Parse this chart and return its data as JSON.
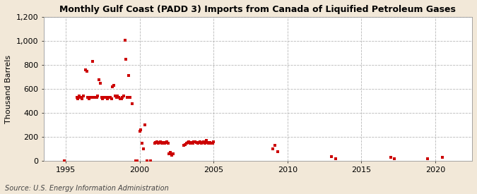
{
  "title": "Monthly Gulf Coast (PADD 3) Imports from Canada of Liquified Petroleum Gases",
  "ylabel": "Thousand Barrels",
  "source": "Source: U.S. Energy Information Administration",
  "background_color": "#f2e8d8",
  "plot_bg_color": "#ffffff",
  "marker_color": "#cc0000",
  "marker_size": 9,
  "ylim": [
    0,
    1200
  ],
  "yticks": [
    0,
    200,
    400,
    600,
    800,
    1000,
    1200
  ],
  "xlim_start": 1993.5,
  "xlim_end": 2022.5,
  "xticks": [
    1995,
    2000,
    2005,
    2010,
    2015,
    2020
  ],
  "data_points": [
    [
      1994.92,
      0
    ],
    [
      1995.75,
      530
    ],
    [
      1995.83,
      520
    ],
    [
      1995.92,
      540
    ],
    [
      1996.0,
      530
    ],
    [
      1996.08,
      520
    ],
    [
      1996.17,
      540
    ],
    [
      1996.33,
      760
    ],
    [
      1996.42,
      750
    ],
    [
      1996.5,
      530
    ],
    [
      1996.58,
      520
    ],
    [
      1996.67,
      530
    ],
    [
      1996.75,
      530
    ],
    [
      1996.83,
      830
    ],
    [
      1996.92,
      530
    ],
    [
      1997.0,
      530
    ],
    [
      1997.08,
      530
    ],
    [
      1997.17,
      540
    ],
    [
      1997.25,
      680
    ],
    [
      1997.33,
      650
    ],
    [
      1997.42,
      530
    ],
    [
      1997.5,
      520
    ],
    [
      1997.58,
      530
    ],
    [
      1997.67,
      530
    ],
    [
      1997.75,
      530
    ],
    [
      1997.83,
      520
    ],
    [
      1997.92,
      530
    ],
    [
      1998.0,
      530
    ],
    [
      1998.08,
      520
    ],
    [
      1998.17,
      620
    ],
    [
      1998.25,
      630
    ],
    [
      1998.33,
      540
    ],
    [
      1998.42,
      530
    ],
    [
      1998.5,
      540
    ],
    [
      1998.58,
      530
    ],
    [
      1998.67,
      520
    ],
    [
      1998.75,
      520
    ],
    [
      1998.83,
      530
    ],
    [
      1998.92,
      540
    ],
    [
      1999.0,
      1005
    ],
    [
      1999.08,
      850
    ],
    [
      1999.17,
      530
    ],
    [
      1999.25,
      710
    ],
    [
      1999.33,
      530
    ],
    [
      1999.5,
      480
    ],
    [
      1999.75,
      0
    ],
    [
      1999.83,
      0
    ],
    [
      2000.0,
      250
    ],
    [
      2000.08,
      260
    ],
    [
      2000.17,
      150
    ],
    [
      2000.25,
      100
    ],
    [
      2000.33,
      300
    ],
    [
      2000.5,
      0
    ],
    [
      2000.75,
      0
    ],
    [
      2001.0,
      150
    ],
    [
      2001.08,
      155
    ],
    [
      2001.17,
      160
    ],
    [
      2001.25,
      150
    ],
    [
      2001.33,
      155
    ],
    [
      2001.42,
      160
    ],
    [
      2001.5,
      150
    ],
    [
      2001.58,
      155
    ],
    [
      2001.67,
      150
    ],
    [
      2001.75,
      155
    ],
    [
      2001.83,
      160
    ],
    [
      2001.92,
      150
    ],
    [
      2002.0,
      60
    ],
    [
      2002.08,
      70
    ],
    [
      2002.17,
      50
    ],
    [
      2002.25,
      60
    ],
    [
      2003.0,
      130
    ],
    [
      2003.08,
      140
    ],
    [
      2003.17,
      150
    ],
    [
      2003.25,
      155
    ],
    [
      2003.33,
      160
    ],
    [
      2003.42,
      150
    ],
    [
      2003.5,
      155
    ],
    [
      2003.58,
      150
    ],
    [
      2003.67,
      160
    ],
    [
      2003.75,
      160
    ],
    [
      2003.83,
      155
    ],
    [
      2003.92,
      150
    ],
    [
      2004.0,
      155
    ],
    [
      2004.08,
      160
    ],
    [
      2004.17,
      150
    ],
    [
      2004.25,
      155
    ],
    [
      2004.33,
      160
    ],
    [
      2004.42,
      150
    ],
    [
      2004.5,
      170
    ],
    [
      2004.58,
      155
    ],
    [
      2004.67,
      150
    ],
    [
      2004.75,
      155
    ],
    [
      2004.83,
      150
    ],
    [
      2004.92,
      150
    ],
    [
      2005.0,
      160
    ],
    [
      2009.0,
      100
    ],
    [
      2009.17,
      130
    ],
    [
      2009.33,
      80
    ],
    [
      2013.0,
      40
    ],
    [
      2013.25,
      20
    ],
    [
      2017.0,
      30
    ],
    [
      2017.25,
      20
    ],
    [
      2019.5,
      20
    ],
    [
      2020.5,
      30
    ]
  ]
}
